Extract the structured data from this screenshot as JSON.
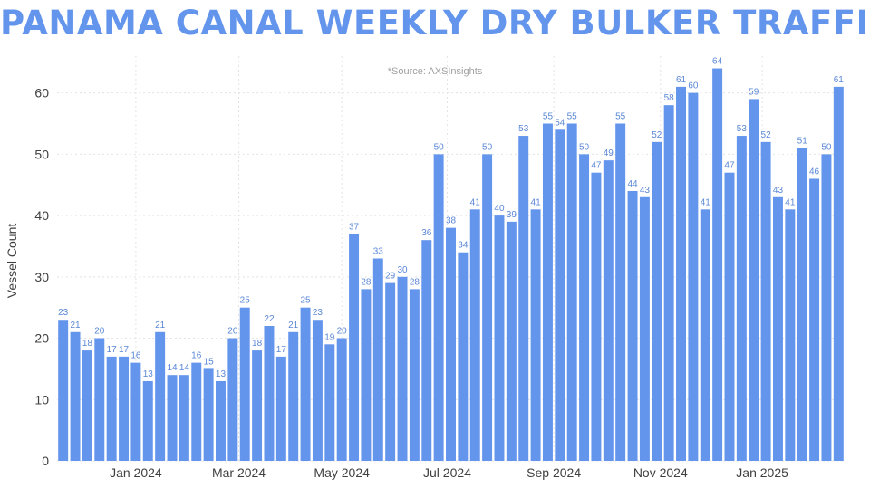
{
  "chart_data": {
    "type": "bar",
    "title": "PANAMA CANAL WEEKLY DRY BULKER TRAFFIC",
    "source": "*Source: AXSInsights",
    "ylabel": "Vessel Count",
    "xlabel": "",
    "ylim": [
      0,
      66
    ],
    "yticks": [
      0,
      10,
      20,
      30,
      40,
      50,
      60
    ],
    "grid": true,
    "x_ticks": [
      {
        "label": "Jan 2024",
        "index": 6
      },
      {
        "label": "Mar 2024",
        "index": 14.5
      },
      {
        "label": "May 2024",
        "index": 23
      },
      {
        "label": "Jul 2024",
        "index": 31.7
      },
      {
        "label": "Sep 2024",
        "index": 40.5
      },
      {
        "label": "Nov 2024",
        "index": 49.3
      },
      {
        "label": "Jan 2025",
        "index": 57.7
      }
    ],
    "bar_color": "#6495ED",
    "values": [
      23,
      21,
      18,
      20,
      17,
      17,
      16,
      13,
      21,
      14,
      14,
      16,
      15,
      13,
      20,
      25,
      18,
      22,
      17,
      21,
      25,
      23,
      19,
      20,
      37,
      28,
      33,
      29,
      30,
      28,
      36,
      50,
      38,
      34,
      41,
      50,
      40,
      39,
      53,
      41,
      55,
      54,
      55,
      50,
      47,
      49,
      55,
      44,
      43,
      52,
      58,
      61,
      60,
      41,
      64,
      47,
      53,
      59,
      52,
      43,
      41,
      51,
      46,
      50,
      61
    ]
  }
}
